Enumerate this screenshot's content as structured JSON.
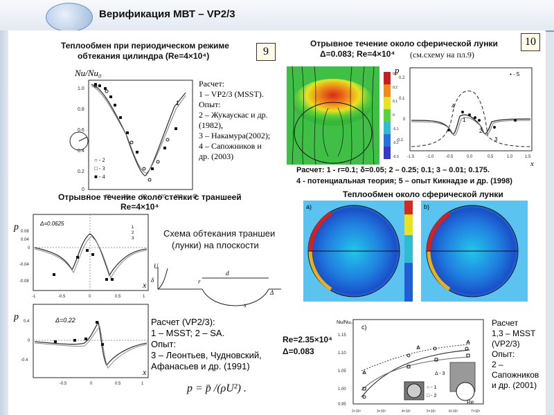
{
  "slide": {
    "title": "Верификация МВТ – VP2/3"
  },
  "panel_left_top": {
    "title_line1": "Теплообмен при периодическом режиме",
    "title_line2": "обтекания цилиндра  (Re=4×10⁴)",
    "badge": "9",
    "ylabel": "Nu/Nu₀",
    "y_ticks": [
      "1.0",
      "0.8",
      "0.6",
      "0.4",
      "0.2",
      "0"
    ],
    "x_ticks": [
      "0",
      "30",
      "60",
      "90",
      "120",
      "150",
      "φ"
    ],
    "plot_legend": [
      "○ - 2",
      "□ - 3",
      "■ - 4"
    ],
    "curve_label": "1",
    "legend": [
      "Расчет:",
      "1 – VP2/3 (MSST).",
      "Опыт:",
      "2 – Жукаускас и др.",
      "(1982),",
      "3 – Накамура(2002);",
      "4 – Сапожников и",
      "др. (2003)"
    ]
  },
  "panel_left_mid": {
    "title_line1": "Отрывное течение около стенки с траншеей",
    "title_line2": "Re=4×10⁴",
    "ylabel": "p",
    "delta": "Δ=0.0625",
    "y_ticks": [
      "0.08",
      "0.04",
      "0",
      "-0.04",
      "-0.08"
    ],
    "x_ticks": [
      "-1",
      "-0.5",
      "0",
      "0.5",
      "1"
    ],
    "xlabel": "x",
    "plot_legend": [
      "1",
      "2",
      "3"
    ],
    "scheme_title_line1": "Схема обтекания траншеи",
    "scheme_title_line2": "(лунки) на плоскости",
    "scheme_labels": [
      "U",
      "δ",
      "r",
      "d",
      "x",
      "Δ"
    ]
  },
  "panel_left_bottom": {
    "ylabel": "p",
    "delta": "Δ=0.22",
    "y_ticks": [
      "0.4",
      "0",
      "-0.4"
    ],
    "x_ticks": [
      "-0.5",
      "0",
      "0.5",
      "1"
    ],
    "xlabel": "x",
    "legend": [
      "Расчет (VP2/3):",
      "1 – MSST; 2 – SA.",
      "Опыт:",
      "3 – Леонтьев, Чудновский,",
      "Афанасьев и др. (1991)"
    ],
    "formula": "p = p̄ /(ρU²) ."
  },
  "panel_right_top": {
    "title_line1": "Отрывное течение около сферической лунки",
    "title_line2": "Δ=0.083; Re=4×10⁴",
    "title_note": "(см.схему на пл.9)",
    "badge": "10",
    "ylabel": "p",
    "y_ticks": [
      "0.2",
      "0.1",
      "0",
      "-0.1"
    ],
    "x_ticks": [
      "-1.5",
      "-1.0",
      "-0.5",
      "0.0",
      "0.5",
      "1.0",
      "1.5"
    ],
    "xlabel": "x",
    "curve_labels": [
      "4",
      "1",
      "2",
      "3",
      "• - 5"
    ],
    "colorbar_ticks": [
      "0.3",
      "0.2",
      "0.1",
      "0",
      "-0.1",
      "-0.2",
      "-0.3"
    ],
    "caption_line1": "Расчет: 1 -  r=0.1; δ=0.05; 2 – 0.25; 0.1; 3 – 0.01; 0.175.",
    "caption_line2": "4 - потенциальная теория; 5 – опыт Кикнадзе и др. (1998)"
  },
  "panel_right_mid": {
    "title": "Теплообмен около сферической лунки",
    "label_a": "a)",
    "label_b": "b)"
  },
  "panel_right_bottom": {
    "params_line1": "Re=2.35×10⁴",
    "params_line2": "Δ=0.083",
    "ylabel": "Nu/Nu₀",
    "label_c": "c)",
    "y_ticks": [
      "1.15",
      "1.10",
      "1.05",
      "1.00",
      "0.95"
    ],
    "x_ticks": [
      "2×10⁴",
      "3×10⁴",
      "4×10⁴",
      "5×10⁴",
      "6×10⁴",
      "7×10⁴"
    ],
    "xlabel": "Re",
    "plot_legend": [
      "Δ - 3",
      "○ - 1",
      "□ - 2"
    ],
    "legend": [
      "Расчет",
      "1,3 – MSST",
      "(VP2/3)",
      "Опыт:",
      "2 –",
      "Сапожников",
      "и др. (2001)"
    ]
  }
}
